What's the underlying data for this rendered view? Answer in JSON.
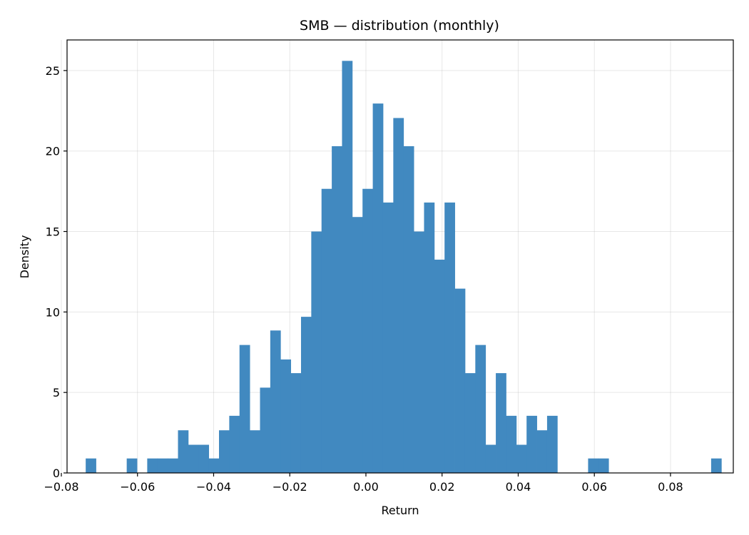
{
  "chart_data": {
    "type": "bar",
    "title": "SMB — distribution (monthly)",
    "xlabel": "Return",
    "ylabel": "Density",
    "xlim": [
      -0.0785,
      0.0965
    ],
    "ylim": [
      0,
      26.9
    ],
    "xticks": [
      -0.08,
      -0.06,
      -0.04,
      -0.02,
      0.0,
      0.02,
      0.04,
      0.06,
      0.08
    ],
    "xtick_labels": [
      "−0.08",
      "−0.06",
      "−0.04",
      "−0.02",
      "0.00",
      "0.02",
      "0.04",
      "0.06",
      "0.08"
    ],
    "yticks": [
      0,
      5,
      10,
      15,
      20,
      25
    ],
    "ytick_labels": [
      "0",
      "5",
      "10",
      "15",
      "20",
      "25"
    ],
    "grid": true,
    "bar_color": "#4189c0",
    "bin_start": -0.0736,
    "bin_width": 0.002693,
    "values": [
      0.9,
      0,
      0,
      0,
      0.9,
      0,
      0.9,
      0.9,
      0.9,
      2.65,
      1.75,
      1.75,
      0.9,
      2.65,
      3.55,
      7.95,
      2.65,
      5.3,
      8.85,
      7.05,
      6.2,
      9.7,
      15.0,
      17.65,
      20.3,
      25.6,
      15.9,
      17.65,
      22.95,
      16.8,
      22.05,
      20.3,
      15.0,
      16.8,
      13.25,
      16.8,
      11.45,
      6.2,
      7.95,
      1.75,
      6.2,
      3.55,
      1.75,
      3.55,
      2.65,
      3.55,
      0,
      0,
      0,
      0.9,
      0.9,
      0,
      0,
      0,
      0,
      0,
      0,
      0,
      0,
      0,
      0,
      0.9
    ]
  }
}
